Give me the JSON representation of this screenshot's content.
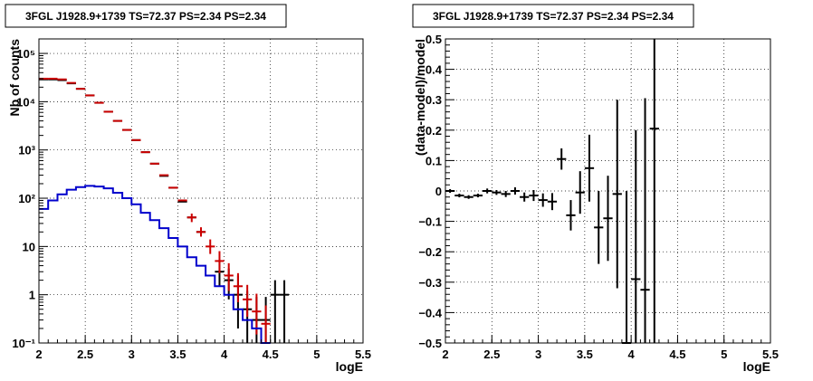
{
  "chart_data": [
    {
      "type": "line",
      "title": "3FGL J1928.9+1739 TS=72.37 PS=2.34 PS=2.34",
      "xlabel": "logE",
      "ylabel": "Nb of counts",
      "xlim": [
        2,
        5.5
      ],
      "ylim": [
        0.1,
        200000
      ],
      "yscale": "log",
      "grid": true,
      "x_ticks": [
        "2",
        "2.5",
        "3",
        "3.5",
        "4",
        "4.5",
        "5",
        "5.5"
      ],
      "y_ticks": [
        "10⁻¹",
        "1",
        "10",
        "10²",
        "10³",
        "10⁴",
        "10⁵"
      ],
      "series": [
        {
          "color": "#000000",
          "style": "errorbar",
          "x": [
            2.05,
            2.15,
            2.25,
            2.35,
            2.45,
            2.55,
            2.65,
            2.75,
            2.85,
            2.95,
            3.05,
            3.15,
            3.25,
            3.35,
            3.45,
            3.55,
            3.65,
            3.75,
            3.95,
            4.05,
            4.15,
            4.25,
            4.35,
            4.45,
            4.55,
            4.65
          ],
          "y": [
            29000,
            29000,
            28000,
            24000,
            18500,
            13500,
            9500,
            6200,
            4000,
            2600,
            1600,
            900,
            520,
            290,
            165,
            85,
            40,
            20,
            3,
            2,
            1,
            0.5,
            0.3,
            0.3,
            1,
            1
          ],
          "yerr_low": [
            0,
            0,
            0,
            0,
            0,
            0,
            0,
            0,
            0,
            0,
            0,
            0,
            0,
            0,
            0,
            0,
            0,
            0,
            1.5,
            1.2,
            0.8,
            0.4,
            0.25,
            0.25,
            0.9,
            0.9
          ],
          "yerr_high": [
            0,
            0,
            0,
            0,
            0,
            0,
            0,
            0,
            0,
            0,
            0,
            0,
            0,
            0,
            0,
            0,
            0,
            0,
            2,
            1.5,
            1.5,
            0.7,
            0.6,
            0.6,
            1,
            1
          ]
        },
        {
          "color": "#cc0000",
          "style": "errorbar",
          "x": [
            2.05,
            2.15,
            2.25,
            2.35,
            2.45,
            2.55,
            2.65,
            2.75,
            2.85,
            2.95,
            3.05,
            3.15,
            3.25,
            3.35,
            3.45,
            3.55,
            3.65,
            3.75,
            3.85,
            3.95,
            4.05,
            4.15,
            4.25,
            4.35,
            4.45
          ],
          "y": [
            30000,
            30000,
            29000,
            24500,
            18500,
            13500,
            9500,
            6200,
            4000,
            2600,
            1600,
            900,
            520,
            300,
            165,
            90,
            40,
            20,
            10,
            5,
            2.5,
            1.5,
            0.8,
            0.45,
            0.25
          ],
          "yerr_low": [
            0,
            0,
            0,
            0,
            0,
            0,
            0,
            0,
            0,
            0,
            0,
            0,
            0,
            0,
            0,
            0,
            8,
            4,
            3,
            2.2,
            1.3,
            0.8,
            0.45,
            0.3,
            0.17
          ],
          "yerr_high": [
            0,
            0,
            0,
            0,
            0,
            0,
            0,
            0,
            0,
            0,
            0,
            0,
            0,
            0,
            0,
            0,
            8,
            5,
            4,
            3,
            2,
            1.3,
            0.8,
            0.6,
            0.35
          ]
        },
        {
          "color": "#0000cc",
          "style": "step",
          "x": [
            2.05,
            2.15,
            2.25,
            2.35,
            2.45,
            2.55,
            2.65,
            2.75,
            2.85,
            2.95,
            3.05,
            3.15,
            3.25,
            3.35,
            3.45,
            3.55,
            3.65,
            3.75,
            3.85,
            3.95,
            4.05,
            4.15,
            4.25,
            4.35,
            4.45
          ],
          "y": [
            60,
            90,
            120,
            150,
            170,
            180,
            175,
            160,
            130,
            100,
            75,
            50,
            35,
            24,
            15,
            10,
            6,
            4,
            2.5,
            1.5,
            1,
            0.5,
            0.3,
            0.2,
            0.1
          ]
        }
      ]
    },
    {
      "type": "scatter",
      "title": "3FGL J1928.9+1739 TS=72.37 PS=2.34 PS=2.34",
      "xlabel": "logE",
      "ylabel": "(data-model)/model",
      "xlim": [
        2,
        5.5
      ],
      "ylim": [
        -0.5,
        0.5
      ],
      "grid": true,
      "x_ticks": [
        "2",
        "2.5",
        "3",
        "3.5",
        "4",
        "4.5",
        "5",
        "5.5"
      ],
      "y_ticks": [
        "−0.5",
        "−0.4",
        "−0.3",
        "−0.2",
        "−0.1",
        "0",
        "0.1",
        "0.2",
        "0.3",
        "0.4",
        "0.5"
      ],
      "series": [
        {
          "color": "#000000",
          "style": "errorbar",
          "x": [
            2.05,
            2.15,
            2.25,
            2.35,
            2.45,
            2.55,
            2.65,
            2.75,
            2.85,
            2.95,
            3.05,
            3.15,
            3.25,
            3.35,
            3.45,
            3.55,
            3.65,
            3.75,
            3.85,
            3.95,
            4.05,
            4.15,
            4.25
          ],
          "y": [
            0.0,
            -0.015,
            -0.02,
            -0.015,
            0.0,
            -0.005,
            -0.01,
            0.0,
            -0.02,
            -0.015,
            -0.03,
            -0.035,
            0.105,
            -0.08,
            -0.005,
            0.075,
            -0.12,
            -0.09,
            -0.01,
            -0.5,
            -0.29,
            -0.325,
            0.205
          ],
          "yerr": [
            0.006,
            0.006,
            0.006,
            0.006,
            0.008,
            0.008,
            0.01,
            0.012,
            0.015,
            0.018,
            0.022,
            0.028,
            0.035,
            0.05,
            0.07,
            0.11,
            0.12,
            0.14,
            0.31,
            0.5,
            0.49,
            0.63,
            0.8
          ]
        }
      ]
    }
  ]
}
